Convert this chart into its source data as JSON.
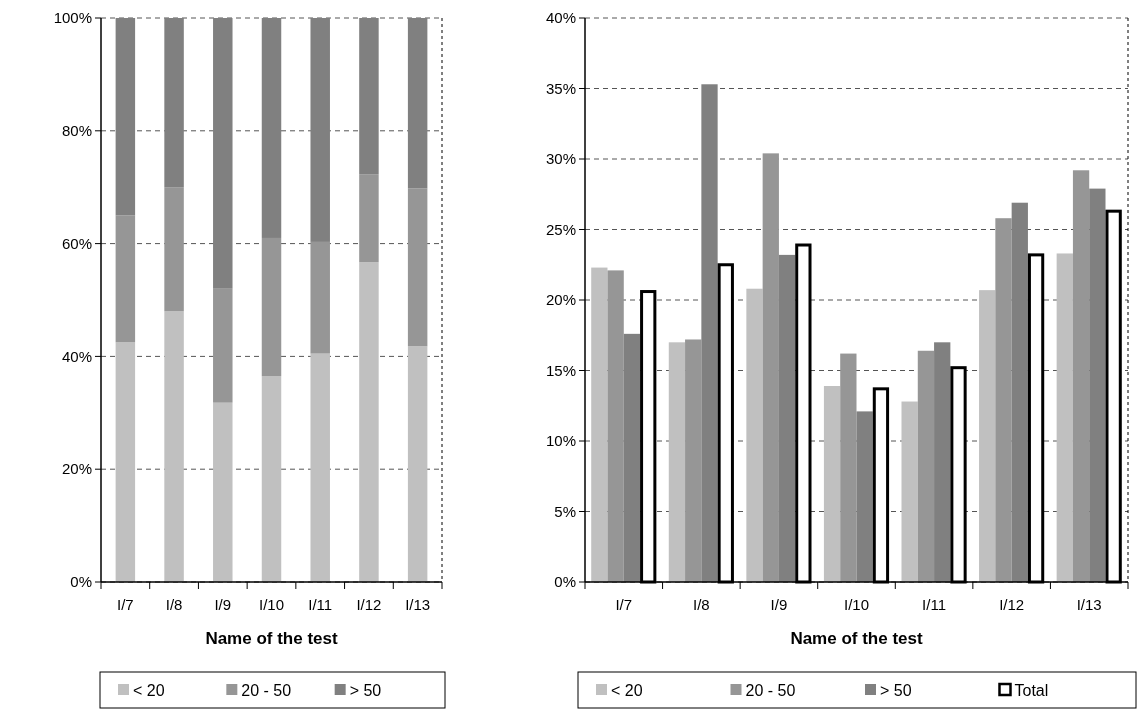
{
  "chart_data": [
    {
      "type": "bar",
      "stacked": true,
      "xlabel": "Name of the test",
      "categories": [
        "I/7",
        "I/8",
        "I/9",
        "I/10",
        "I/11",
        "I/12",
        "I/13"
      ],
      "series": [
        {
          "name": "< 20",
          "color": "#c0c0c0",
          "values": [
            42.5,
            48,
            31.8,
            36.5,
            40.5,
            56.7,
            41.8
          ]
        },
        {
          "name": "20 - 50",
          "color": "#969696",
          "values": [
            22.5,
            22,
            20.2,
            24.5,
            19.8,
            15.6,
            28
          ]
        },
        {
          "name": "> 50",
          "color": "#808080",
          "values": [
            35,
            30,
            48,
            39,
            39.7,
            27.7,
            30.2
          ]
        }
      ],
      "ylim": [
        0,
        100
      ],
      "yticks": [
        {
          "value": 0,
          "label": "0%"
        },
        {
          "value": 20,
          "label": "20%"
        },
        {
          "value": 40,
          "label": "40%"
        },
        {
          "value": 60,
          "label": "60%"
        },
        {
          "value": 80,
          "label": "80%"
        },
        {
          "value": 100,
          "label": "100%"
        }
      ],
      "grid": "y",
      "legend": "bottom"
    },
    {
      "type": "bar",
      "xlabel": "Name of the test",
      "categories": [
        "I/7",
        "I/8",
        "I/9",
        "I/10",
        "I/11",
        "I/12",
        "I/13"
      ],
      "series": [
        {
          "name": "< 20",
          "color": "#c0c0c0",
          "values": [
            22.3,
            17.0,
            20.8,
            13.9,
            12.8,
            20.7,
            23.3
          ]
        },
        {
          "name": "20 - 50",
          "color": "#969696",
          "values": [
            22.1,
            17.2,
            30.4,
            16.2,
            16.4,
            25.8,
            29.2
          ]
        },
        {
          "name": "> 50",
          "color": "#808080",
          "values": [
            17.6,
            35.3,
            23.2,
            12.1,
            17.0,
            26.9,
            27.9
          ]
        },
        {
          "name": "Total",
          "color": "#ffffff",
          "values": [
            20.6,
            22.5,
            23.9,
            13.7,
            15.2,
            23.2,
            26.3
          ]
        }
      ],
      "ylim": [
        0,
        40
      ],
      "yticks": [
        {
          "value": 0,
          "label": "0%"
        },
        {
          "value": 5,
          "label": "5%"
        },
        {
          "value": 10,
          "label": "10%"
        },
        {
          "value": 15,
          "label": "15%"
        },
        {
          "value": 20,
          "label": "20%"
        },
        {
          "value": 25,
          "label": "25%"
        },
        {
          "value": 30,
          "label": "30%"
        },
        {
          "value": 35,
          "label": "35%"
        },
        {
          "value": 40,
          "label": "40%"
        }
      ],
      "grid": "y",
      "legend": "bottom"
    }
  ]
}
